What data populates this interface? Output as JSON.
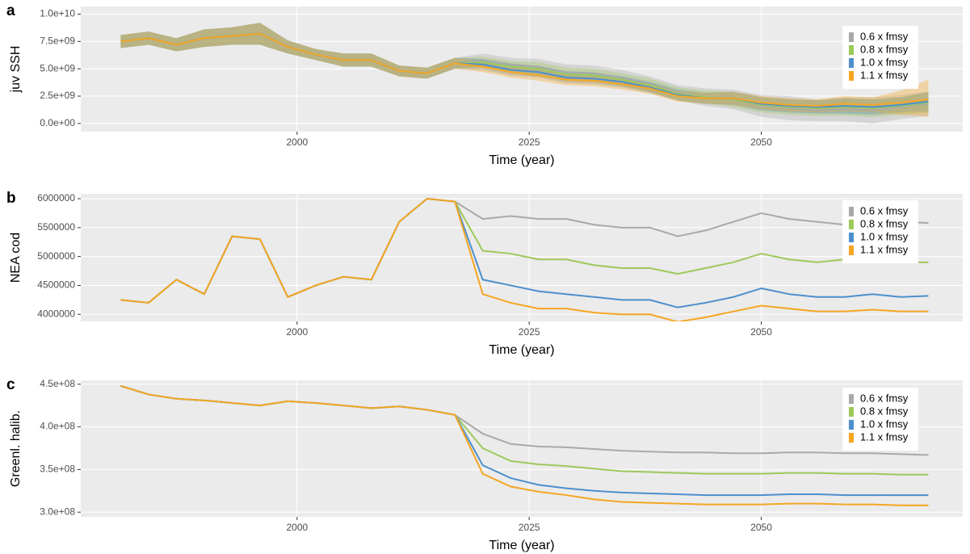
{
  "chart_data": [
    {
      "type": "line",
      "panel_label": "a",
      "ylabel": "juv SSH",
      "xlabel": "Time (year)",
      "x": [
        1981,
        1984,
        1987,
        1990,
        1993,
        1996,
        1999,
        2002,
        2005,
        2008,
        2011,
        2014,
        2017,
        2020,
        2023,
        2026,
        2029,
        2032,
        2035,
        2038,
        2041,
        2044,
        2047,
        2050,
        2053,
        2056,
        2059,
        2062,
        2065,
        2068
      ],
      "xlim": [
        1976.7,
        2071.7
      ],
      "xticks": [
        2000,
        2025,
        2050
      ],
      "ylim": [
        -750000000.0,
        10700000000.0
      ],
      "yticks": [
        {
          "value": 0,
          "label": "0.0e+00"
        },
        {
          "value": 2500000000.0,
          "label": "2.5e+09"
        },
        {
          "value": 5000000000.0,
          "label": "5.0e+09"
        },
        {
          "value": 7500000000.0,
          "label": "7.5e+09"
        },
        {
          "value": 10000000000.0,
          "label": "1.0e+10"
        }
      ],
      "grid": true,
      "legend": "top-right",
      "series": [
        {
          "name": "0.6 x fmsy",
          "color": "#a9a9a9",
          "values": [
            7500000000.0,
            7800000000.0,
            7200000000.0,
            7800000000.0,
            8000000000.0,
            8200000000.0,
            7000000000.0,
            6300000000.0,
            5800000000.0,
            5800000000.0,
            4800000000.0,
            4600000000.0,
            5500000000.0,
            5800000000.0,
            5400000000.0,
            5200000000.0,
            4700000000.0,
            4600000000.0,
            4200000000.0,
            3600000000.0,
            2800000000.0,
            2400000000.0,
            2200000000.0,
            1600000000.0,
            1400000000.0,
            1200000000.0,
            1300000000.0,
            1200000000.0,
            1500000000.0,
            1800000000.0
          ],
          "lower": [
            6900000000.0,
            7200000000.0,
            6600000000.0,
            7000000000.0,
            7200000000.0,
            7200000000.0,
            6400000000.0,
            5800000000.0,
            5200000000.0,
            5200000000.0,
            4300000000.0,
            4100000000.0,
            5000000000.0,
            5200000000.0,
            4800000000.0,
            4500000000.0,
            4000000000.0,
            3900000000.0,
            3500000000.0,
            2900000000.0,
            2100000000.0,
            1600000000.0,
            1300000000.0,
            600000000.0,
            300000000.0,
            200000000.0,
            200000000.0,
            0,
            400000000.0,
            700000000.0
          ],
          "upper": [
            8100000000.0,
            8400000000.0,
            7800000000.0,
            8600000000.0,
            8800000000.0,
            9200000000.0,
            7600000000.0,
            6800000000.0,
            6400000000.0,
            6400000000.0,
            5300000000.0,
            5100000000.0,
            6000000000.0,
            6400000000.0,
            6000000000.0,
            5900000000.0,
            5400000000.0,
            5300000000.0,
            4900000000.0,
            4300000000.0,
            3500000000.0,
            3200000000.0,
            3100000000.0,
            2600000000.0,
            2500000000.0,
            2200000000.0,
            2400000000.0,
            2400000000.0,
            2600000000.0,
            2900000000.0
          ]
        },
        {
          "name": "0.8 x fmsy",
          "color": "#9dc95a",
          "values": [
            7500000000.0,
            7800000000.0,
            7200000000.0,
            7800000000.0,
            8000000000.0,
            8200000000.0,
            7000000000.0,
            6300000000.0,
            5800000000.0,
            5800000000.0,
            4800000000.0,
            4600000000.0,
            5500000000.0,
            5600000000.0,
            5200000000.0,
            5000000000.0,
            4500000000.0,
            4400000000.0,
            4000000000.0,
            3500000000.0,
            2700000000.0,
            2400000000.0,
            2200000000.0,
            1700000000.0,
            1500000000.0,
            1400000000.0,
            1500000000.0,
            1400000000.0,
            1600000000.0,
            1900000000.0
          ],
          "lower": [
            6900000000.0,
            7200000000.0,
            6600000000.0,
            7000000000.0,
            7200000000.0,
            7200000000.0,
            6400000000.0,
            5800000000.0,
            5200000000.0,
            5200000000.0,
            4300000000.0,
            4100000000.0,
            5000000000.0,
            5100000000.0,
            4700000000.0,
            4400000000.0,
            3900000000.0,
            3800000000.0,
            3400000000.0,
            2900000000.0,
            2100000000.0,
            1800000000.0,
            1500000000.0,
            1000000000.0,
            800000000.0,
            700000000.0,
            700000000.0,
            600000000.0,
            800000000.0,
            1000000000.0
          ],
          "upper": [
            8100000000.0,
            8400000000.0,
            7800000000.0,
            8600000000.0,
            8800000000.0,
            9200000000.0,
            7600000000.0,
            6800000000.0,
            6400000000.0,
            6400000000.0,
            5300000000.0,
            5100000000.0,
            6000000000.0,
            6100000000.0,
            5700000000.0,
            5600000000.0,
            5100000000.0,
            5000000000.0,
            4600000000.0,
            4100000000.0,
            3300000000.0,
            3000000000.0,
            2900000000.0,
            2400000000.0,
            2200000000.0,
            2100000000.0,
            2300000000.0,
            2200000000.0,
            2400000000.0,
            2800000000.0
          ]
        },
        {
          "name": "1.0 x fmsy",
          "color": "#4d8fcc",
          "values": [
            7500000000.0,
            7800000000.0,
            7200000000.0,
            7800000000.0,
            8000000000.0,
            8200000000.0,
            7000000000.0,
            6300000000.0,
            5800000000.0,
            5800000000.0,
            4800000000.0,
            4600000000.0,
            5500000000.0,
            5400000000.0,
            4900000000.0,
            4700000000.0,
            4200000000.0,
            4100000000.0,
            3800000000.0,
            3300000000.0,
            2600000000.0,
            2300000000.0,
            2300000000.0,
            1800000000.0,
            1600000000.0,
            1500000000.0,
            1600000000.0,
            1500000000.0,
            1700000000.0,
            2000000000.0
          ],
          "lower": [
            6900000000.0,
            7200000000.0,
            6600000000.0,
            7000000000.0,
            7200000000.0,
            7200000000.0,
            6400000000.0,
            5800000000.0,
            5200000000.0,
            5200000000.0,
            4300000000.0,
            4100000000.0,
            5000000000.0,
            4900000000.0,
            4400000000.0,
            4200000000.0,
            3700000000.0,
            3600000000.0,
            3300000000.0,
            2800000000.0,
            2100000000.0,
            1800000000.0,
            1700000000.0,
            1200000000.0,
            1000000000.0,
            900000000.0,
            900000000.0,
            800000000.0,
            1000000000.0,
            1100000000.0
          ],
          "upper": [
            8100000000.0,
            8400000000.0,
            7800000000.0,
            8600000000.0,
            8800000000.0,
            9200000000.0,
            7600000000.0,
            6800000000.0,
            6400000000.0,
            6400000000.0,
            5300000000.0,
            5100000000.0,
            6000000000.0,
            5900000000.0,
            5400000000.0,
            5200000000.0,
            4700000000.0,
            4600000000.0,
            4300000000.0,
            3800000000.0,
            3100000000.0,
            2800000000.0,
            2900000000.0,
            2400000000.0,
            2200000000.0,
            2100000000.0,
            2300000000.0,
            2200000000.0,
            2400000000.0,
            2900000000.0
          ]
        },
        {
          "name": "1.1 x fmsy",
          "color": "#f5a623",
          "values": [
            7500000000.0,
            7800000000.0,
            7200000000.0,
            7800000000.0,
            8000000000.0,
            8200000000.0,
            7000000000.0,
            6300000000.0,
            5800000000.0,
            5800000000.0,
            4800000000.0,
            4600000000.0,
            5500000000.0,
            5200000000.0,
            4700000000.0,
            4400000000.0,
            4000000000.0,
            3900000000.0,
            3600000000.0,
            3200000000.0,
            2500000000.0,
            2300000000.0,
            2300000000.0,
            1900000000.0,
            1700000000.0,
            1600000000.0,
            1800000000.0,
            1700000000.0,
            1900000000.0,
            2200000000.0
          ],
          "lower": [
            6900000000.0,
            7200000000.0,
            6600000000.0,
            7000000000.0,
            7200000000.0,
            7200000000.0,
            6400000000.0,
            5800000000.0,
            5200000000.0,
            5200000000.0,
            4300000000.0,
            4100000000.0,
            5000000000.0,
            4700000000.0,
            4200000000.0,
            3900000000.0,
            3500000000.0,
            3400000000.0,
            3100000000.0,
            2700000000.0,
            2000000000.0,
            1800000000.0,
            1700000000.0,
            1300000000.0,
            1100000000.0,
            1000000000.0,
            1100000000.0,
            1000000000.0,
            800000000.0,
            600000000.0
          ],
          "upper": [
            8100000000.0,
            8400000000.0,
            7800000000.0,
            8600000000.0,
            8800000000.0,
            9200000000.0,
            7600000000.0,
            6800000000.0,
            6400000000.0,
            6400000000.0,
            5300000000.0,
            5100000000.0,
            6000000000.0,
            5700000000.0,
            5200000000.0,
            4900000000.0,
            4500000000.0,
            4400000000.0,
            4100000000.0,
            3700000000.0,
            3000000000.0,
            2800000000.0,
            2900000000.0,
            2500000000.0,
            2300000000.0,
            2200000000.0,
            2500000000.0,
            2400000000.0,
            3000000000.0,
            4000000000.0
          ]
        }
      ]
    },
    {
      "type": "line",
      "panel_label": "b",
      "ylabel": "NEA cod",
      "xlabel": "Time (year)",
      "x": [
        1981,
        1984,
        1987,
        1990,
        1993,
        1996,
        1999,
        2002,
        2005,
        2008,
        2011,
        2014,
        2017,
        2020,
        2023,
        2026,
        2029,
        2032,
        2035,
        2038,
        2041,
        2044,
        2047,
        2050,
        2053,
        2056,
        2059,
        2062,
        2065,
        2068
      ],
      "xlim": [
        1976.7,
        2071.7
      ],
      "xticks": [
        2000,
        2025,
        2050
      ],
      "ylim": [
        3878000,
        6084000
      ],
      "yticks": [
        4000000,
        4500000,
        5000000,
        5500000,
        6000000
      ],
      "grid": true,
      "legend": "top-right",
      "series": [
        {
          "name": "0.6 x fmsy",
          "color": "#a9a9a9",
          "values": [
            4250000,
            4200000,
            4600000,
            4350000,
            5350000,
            5300000,
            4300000,
            4500000,
            4650000,
            4600000,
            5600000,
            6000000,
            5950000,
            5650000,
            5700000,
            5650000,
            5650000,
            5550000,
            5500000,
            5500000,
            5350000,
            5450000,
            5600000,
            5750000,
            5650000,
            5600000,
            5550000,
            5600000,
            5600000,
            5580000
          ]
        },
        {
          "name": "0.8 x fmsy",
          "color": "#9dc95a",
          "values": [
            4250000,
            4200000,
            4600000,
            4350000,
            5350000,
            5300000,
            4300000,
            4500000,
            4650000,
            4600000,
            5600000,
            6000000,
            5950000,
            5100000,
            5050000,
            4950000,
            4950000,
            4850000,
            4800000,
            4800000,
            4700000,
            4800000,
            4900000,
            5050000,
            4950000,
            4900000,
            4950000,
            4900000,
            4900000,
            4900000
          ]
        },
        {
          "name": "1.0 x fmsy",
          "color": "#4d8fcc",
          "values": [
            4250000,
            4200000,
            4600000,
            4350000,
            5350000,
            5300000,
            4300000,
            4500000,
            4650000,
            4600000,
            5600000,
            6000000,
            5950000,
            4600000,
            4500000,
            4400000,
            4350000,
            4300000,
            4250000,
            4250000,
            4120000,
            4200000,
            4300000,
            4450000,
            4350000,
            4300000,
            4300000,
            4350000,
            4300000,
            4320000
          ]
        },
        {
          "name": "1.1 x fmsy",
          "color": "#f5a623",
          "values": [
            4250000,
            4200000,
            4600000,
            4350000,
            5350000,
            5300000,
            4300000,
            4500000,
            4650000,
            4600000,
            5600000,
            6000000,
            5950000,
            4350000,
            4200000,
            4100000,
            4100000,
            4030000,
            4000000,
            4000000,
            3870000,
            3950000,
            4050000,
            4150000,
            4100000,
            4050000,
            4050000,
            4080000,
            4050000,
            4050000
          ]
        }
      ]
    },
    {
      "type": "line",
      "panel_label": "c",
      "ylabel": "Greenl. halib.",
      "xlabel": "Time (year)",
      "x": [
        1981,
        1984,
        1987,
        1990,
        1993,
        1996,
        1999,
        2002,
        2005,
        2008,
        2011,
        2014,
        2017,
        2020,
        2023,
        2026,
        2029,
        2032,
        2035,
        2038,
        2041,
        2044,
        2047,
        2050,
        2053,
        2056,
        2059,
        2062,
        2065,
        2068
      ],
      "xlim": [
        1976.7,
        2071.7
      ],
      "xticks": [
        2000,
        2025,
        2050
      ],
      "ylim": [
        294500000.0,
        454500000.0
      ],
      "yticks": [
        {
          "value": 300000000.0,
          "label": "3.0e+08"
        },
        {
          "value": 350000000.0,
          "label": "3.5e+08"
        },
        {
          "value": 400000000.0,
          "label": "4.0e+08"
        },
        {
          "value": 450000000.0,
          "label": "4.5e+08"
        }
      ],
      "grid": true,
      "legend": "top-right",
      "series": [
        {
          "name": "0.6 x fmsy",
          "color": "#a9a9a9",
          "values": [
            448000000.0,
            438000000.0,
            433000000.0,
            431000000.0,
            428000000.0,
            425000000.0,
            430000000.0,
            428000000.0,
            425000000.0,
            422000000.0,
            424000000.0,
            420000000.0,
            414000000.0,
            392000000.0,
            380000000.0,
            377000000.0,
            376000000.0,
            374000000.0,
            372000000.0,
            371000000.0,
            370000000.0,
            370000000.0,
            369000000.0,
            369000000.0,
            370000000.0,
            370000000.0,
            369000000.0,
            369000000.0,
            368000000.0,
            367000000.0
          ]
        },
        {
          "name": "0.8 x fmsy",
          "color": "#9dc95a",
          "values": [
            448000000.0,
            438000000.0,
            433000000.0,
            431000000.0,
            428000000.0,
            425000000.0,
            430000000.0,
            428000000.0,
            425000000.0,
            422000000.0,
            424000000.0,
            420000000.0,
            414000000.0,
            375000000.0,
            360000000.0,
            356000000.0,
            354000000.0,
            351000000.0,
            348000000.0,
            347000000.0,
            346000000.0,
            345000000.0,
            345000000.0,
            345000000.0,
            346000000.0,
            346000000.0,
            345000000.0,
            345000000.0,
            344000000.0,
            344000000.0
          ]
        },
        {
          "name": "1.0 x fmsy",
          "color": "#4d8fcc",
          "values": [
            448000000.0,
            438000000.0,
            433000000.0,
            431000000.0,
            428000000.0,
            425000000.0,
            430000000.0,
            428000000.0,
            425000000.0,
            422000000.0,
            424000000.0,
            420000000.0,
            414000000.0,
            355000000.0,
            340000000.0,
            332000000.0,
            328000000.0,
            325000000.0,
            323000000.0,
            322000000.0,
            321000000.0,
            320000000.0,
            320000000.0,
            320000000.0,
            321000000.0,
            321000000.0,
            320000000.0,
            320000000.0,
            320000000.0,
            320000000.0
          ]
        },
        {
          "name": "1.1 x fmsy",
          "color": "#f5a623",
          "values": [
            448000000.0,
            438000000.0,
            433000000.0,
            431000000.0,
            428000000.0,
            425000000.0,
            430000000.0,
            428000000.0,
            425000000.0,
            422000000.0,
            424000000.0,
            420000000.0,
            414000000.0,
            345000000.0,
            330000000.0,
            324000000.0,
            320000000.0,
            315000000.0,
            312000000.0,
            311000000.0,
            310000000.0,
            309000000.0,
            309000000.0,
            309000000.0,
            310000000.0,
            310000000.0,
            309000000.0,
            309000000.0,
            308000000.0,
            308000000.0
          ]
        }
      ]
    }
  ]
}
